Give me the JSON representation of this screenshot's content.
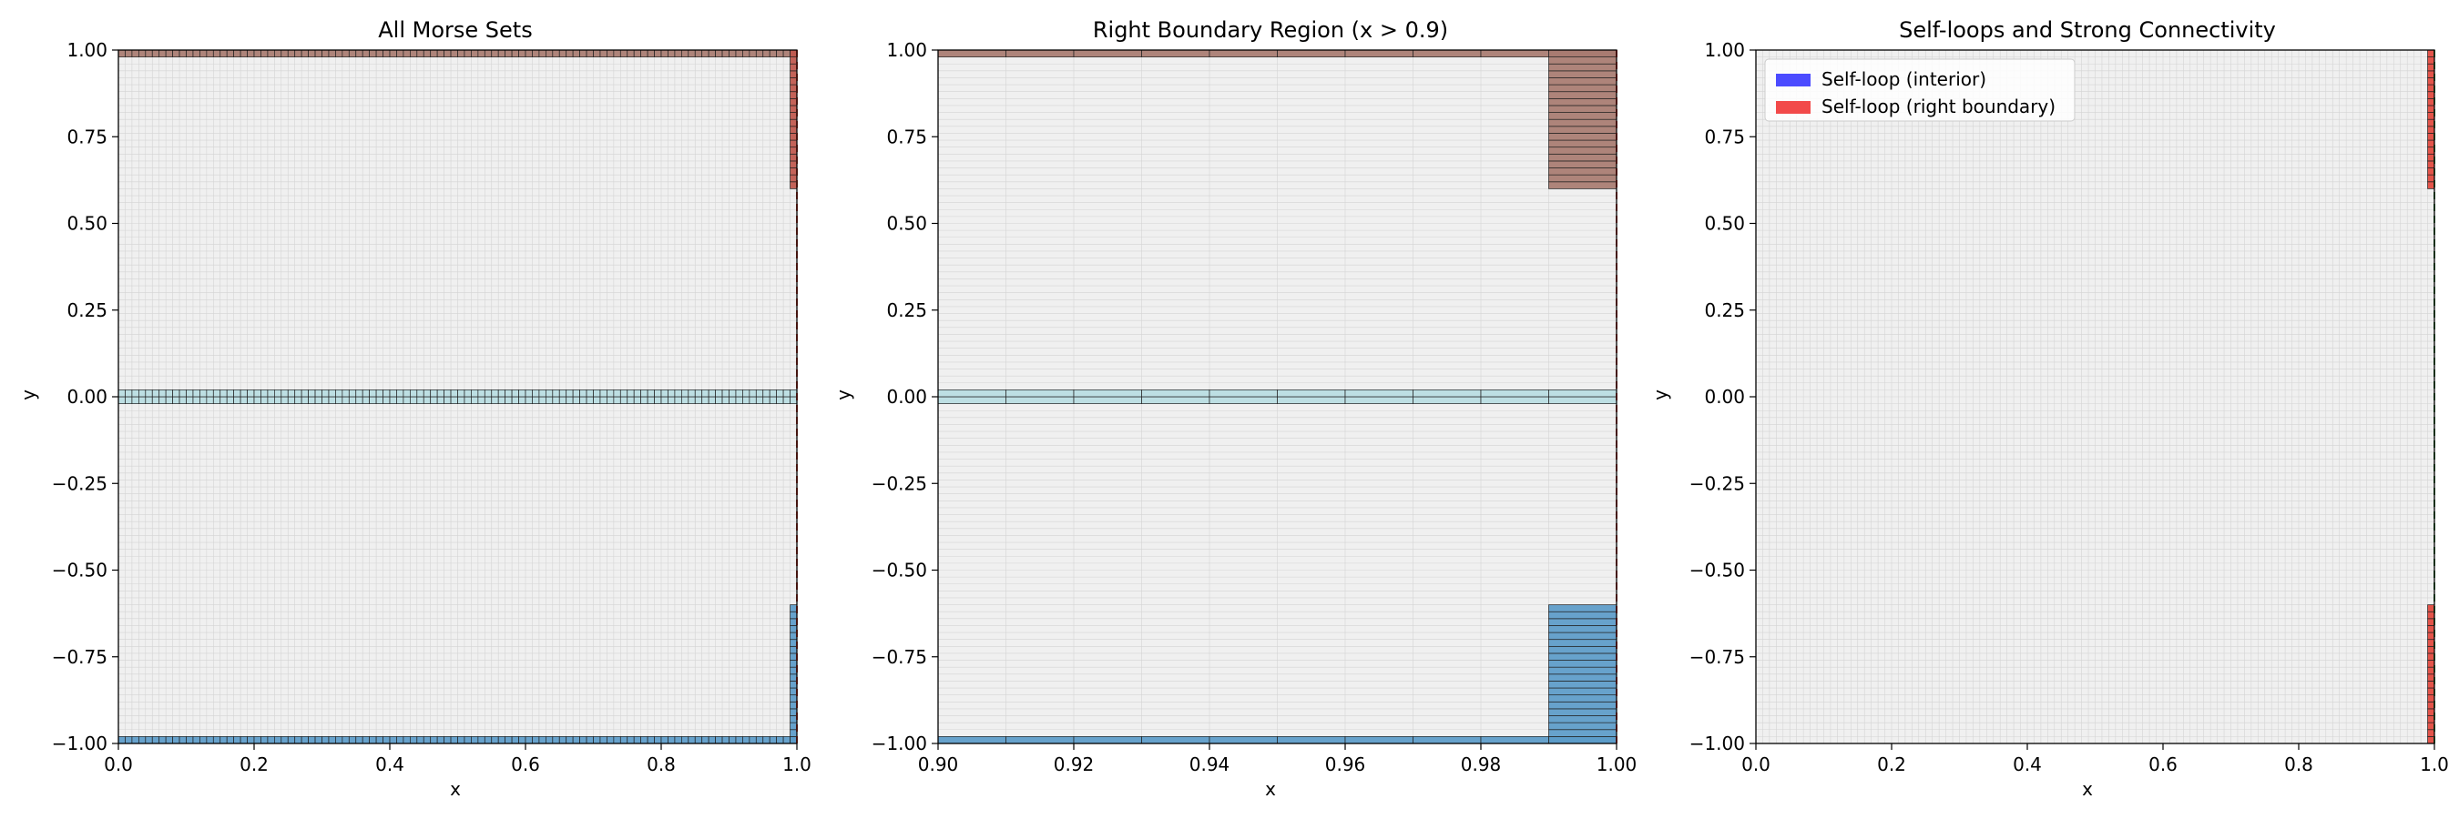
{
  "chart_data": [
    {
      "type": "heatmap",
      "title": "All Morse Sets",
      "xlabel": "x",
      "ylabel": "y",
      "xlim": [
        0.0,
        1.0
      ],
      "ylim": [
        -1.0,
        1.0
      ],
      "xticks": [
        "0.0",
        "0.2",
        "0.4",
        "0.6",
        "0.8",
        "1.0"
      ],
      "yticks": [
        "1.00",
        "0.75",
        "0.50",
        "0.25",
        "0.00",
        "−0.25",
        "−0.50",
        "−0.75",
        "−1.00"
      ],
      "grid": true,
      "grid_cell": {
        "dx": 0.01,
        "dy": 0.02
      },
      "morse_sets": [
        {
          "x0": 0.0,
          "x1": 1.0,
          "y0": 0.98,
          "y1": 1.0,
          "color": "#a87b70"
        },
        {
          "x0": 0.99,
          "x1": 1.0,
          "y0": 0.6,
          "y1": 1.0,
          "color": "#c0574c"
        },
        {
          "x0": 0.0,
          "x1": 1.0,
          "y0": -0.02,
          "y1": 0.02,
          "color": "#b8dde2"
        },
        {
          "x0": 0.0,
          "x1": 1.0,
          "y0": -1.0,
          "y1": -0.98,
          "color": "#5b9bc9"
        },
        {
          "x0": 0.99,
          "x1": 1.0,
          "y0": -1.0,
          "y1": -0.6,
          "color": "#5b9bc9"
        }
      ],
      "boundary_line": {
        "x": 1.0,
        "color": "#c0392b"
      }
    },
    {
      "type": "heatmap",
      "title": "Right Boundary Region (x > 0.9)",
      "xlabel": "x",
      "ylabel": "y",
      "xlim": [
        0.9,
        1.0
      ],
      "ylim": [
        -1.0,
        1.0
      ],
      "xticks": [
        "0.90",
        "0.92",
        "0.94",
        "0.96",
        "0.98",
        "1.00"
      ],
      "yticks": [
        "1.00",
        "0.75",
        "0.50",
        "0.25",
        "0.00",
        "−0.25",
        "−0.50",
        "−0.75",
        "−1.00"
      ],
      "grid": true,
      "grid_cell": {
        "dx": 0.01,
        "dy": 0.02
      },
      "morse_sets": [
        {
          "x0": 0.9,
          "x1": 1.0,
          "y0": 0.98,
          "y1": 1.0,
          "color": "#a87b70"
        },
        {
          "x0": 0.99,
          "x1": 1.0,
          "y0": 0.6,
          "y1": 1.0,
          "color": "#a87b70"
        },
        {
          "x0": 0.9,
          "x1": 1.0,
          "y0": -0.02,
          "y1": 0.02,
          "color": "#b8dde2"
        },
        {
          "x0": 0.9,
          "x1": 1.0,
          "y0": -1.0,
          "y1": -0.98,
          "color": "#5b9bc9"
        },
        {
          "x0": 0.99,
          "x1": 1.0,
          "y0": -1.0,
          "y1": -0.6,
          "color": "#5b9bc9"
        }
      ],
      "boundary_line": {
        "x": 1.0,
        "color": "#c0392b"
      }
    },
    {
      "type": "heatmap",
      "title": "Self-loops and Strong Connectivity",
      "xlabel": "x",
      "ylabel": "y",
      "xlim": [
        0.0,
        1.0
      ],
      "ylim": [
        -1.0,
        1.0
      ],
      "xticks": [
        "0.0",
        "0.2",
        "0.4",
        "0.6",
        "0.8",
        "1.0"
      ],
      "yticks": [
        "1.00",
        "0.75",
        "0.50",
        "0.25",
        "0.00",
        "−0.25",
        "−0.50",
        "−0.75",
        "−1.00"
      ],
      "grid": true,
      "grid_cell": {
        "dx": 0.01,
        "dy": 0.02
      },
      "legend": {
        "placement": "top-left",
        "entries": [
          {
            "label": "Self-loop (interior)",
            "color": "#4b4bff"
          },
          {
            "label": "Self-loop (right boundary)",
            "color": "#f24a4a"
          }
        ]
      },
      "morse_sets": [
        {
          "x0": 0.99,
          "x1": 1.0,
          "y0": 0.6,
          "y1": 1.0,
          "color": "#e2463c"
        },
        {
          "x0": 0.99,
          "x1": 1.0,
          "y0": -1.0,
          "y1": -0.6,
          "color": "#e2463c"
        }
      ],
      "boundary_line": {
        "x": 1.0,
        "color": "#3a8a4a"
      }
    }
  ]
}
